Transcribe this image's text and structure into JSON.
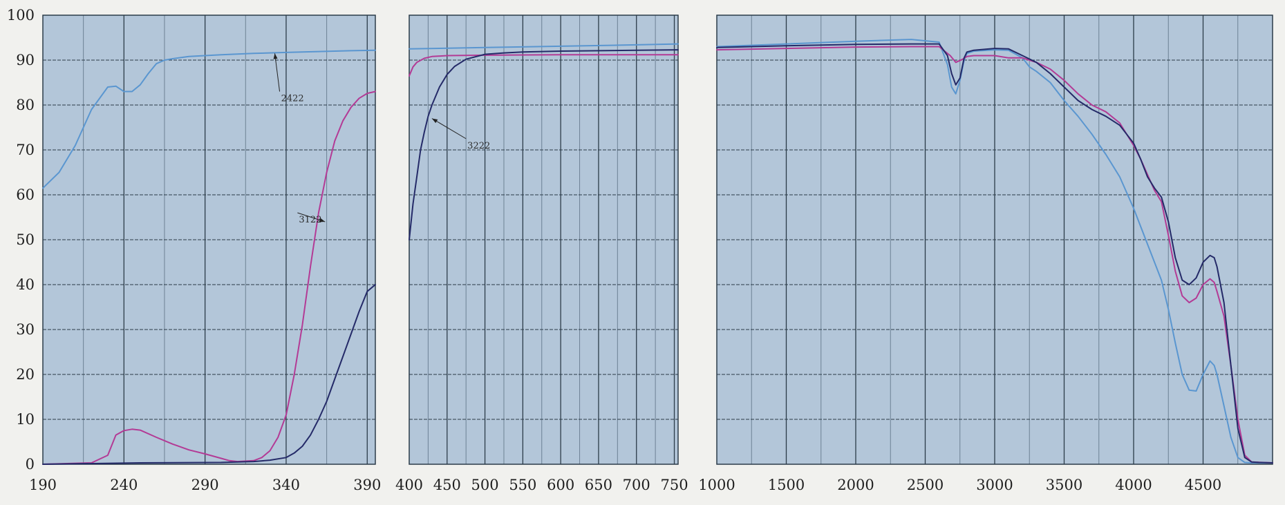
{
  "chart_data": {
    "type": "line",
    "y_ticks": [
      0,
      10,
      20,
      30,
      40,
      50,
      60,
      70,
      80,
      90,
      100
    ],
    "ylim": [
      0,
      100
    ],
    "grid": true,
    "colors": {
      "background": "#b3c6d9",
      "grid_major": "#2b3b48",
      "grid_minor": "#6d8194",
      "light_blue": "#5a96d0",
      "magenta": "#b33a95",
      "navy": "#242a68"
    },
    "panels": [
      {
        "xlim": [
          190,
          395
        ],
        "x_ticks": [
          190,
          240,
          290,
          340,
          390
        ],
        "series": [
          {
            "color": "light_blue",
            "x": [
              190,
              200,
              210,
              220,
              230,
              235,
              240,
              245,
              250,
              255,
              260,
              265,
              270,
              280,
              300,
              320,
              340,
              360,
              380,
              395
            ],
            "y": [
              61.5,
              65,
              71,
              79,
              84,
              84.2,
              83,
              83,
              84.5,
              87,
              89.2,
              90,
              90.3,
              90.8,
              91.2,
              91.5,
              91.7,
              91.9,
              92.1,
              92.2
            ]
          },
          {
            "color": "magenta",
            "x": [
              190,
              220,
              230,
              235,
              240,
              245,
              250,
              260,
              270,
              280,
              290,
              300,
              305,
              310,
              320,
              325,
              330,
              335,
              340,
              345,
              350,
              355,
              360,
              365,
              370,
              375,
              380,
              385,
              390,
              395
            ],
            "y": [
              0,
              0.3,
              2,
              6.5,
              7.5,
              7.8,
              7.6,
              6,
              4.5,
              3.2,
              2.3,
              1.3,
              0.8,
              0.6,
              0.8,
              1.5,
              3,
              6,
              11,
              20,
              31,
              44,
              56,
              65,
              72,
              76.5,
              79.5,
              81.5,
              82.6,
              83
            ]
          },
          {
            "color": "navy",
            "x": [
              190,
              250,
              300,
              320,
              330,
              340,
              345,
              350,
              355,
              360,
              365,
              370,
              375,
              380,
              385,
              390,
              395
            ],
            "y": [
              0,
              0.3,
              0.4,
              0.6,
              0.9,
              1.5,
              2.5,
              4,
              6.5,
              10,
              14,
              19,
              24,
              29,
              34,
              38.5,
              40
            ]
          }
        ],
        "annotations": [
          {
            "text": "2422",
            "target": [
              333,
              91.5
            ],
            "label_at": [
              336,
              83
            ]
          },
          {
            "text": "3122",
            "target": [
              364,
              54
            ],
            "label_at": [
              347,
              56
            ]
          }
        ]
      },
      {
        "xlim": [
          400,
          755
        ],
        "x_ticks": [
          400,
          450,
          500,
          550,
          600,
          650,
          700,
          750
        ],
        "series": [
          {
            "color": "light_blue",
            "x": [
              400,
              500,
              600,
              700,
              755
            ],
            "y": [
              92.5,
              92.8,
              93.1,
              93.4,
              93.6
            ]
          },
          {
            "color": "magenta",
            "x": [
              400,
              405,
              410,
              420,
              430,
              450,
              500,
              600,
              700,
              755
            ],
            "y": [
              86.5,
              88.5,
              89.5,
              90.4,
              90.8,
              91,
              91.1,
              91.2,
              91.2,
              91.2
            ]
          },
          {
            "color": "navy",
            "x": [
              400,
              405,
              410,
              415,
              420,
              425,
              430,
              440,
              450,
              460,
              475,
              500,
              525,
              550,
              600,
              700,
              755
            ],
            "y": [
              50,
              58,
              64,
              70,
              74,
              77.5,
              80,
              84,
              86.8,
              88.6,
              90.2,
              91.3,
              91.6,
              91.8,
              92,
              92.2,
              92.3
            ]
          }
        ],
        "annotations": [
          {
            "text": "3222",
            "target": [
              430,
              77
            ],
            "label_at": [
              475,
              72.5
            ]
          }
        ]
      },
      {
        "xlim": [
          1000,
          5000
        ],
        "x_ticks": [
          1000,
          1500,
          2000,
          2500,
          3000,
          3500,
          4000,
          4500
        ],
        "series": [
          {
            "color": "light_blue",
            "x": [
              1000,
              1500,
              2000,
              2400,
              2600,
              2660,
              2690,
              2720,
              2750,
              2780,
              2800,
              2850,
              3000,
              3100,
              3200,
              3250,
              3300,
              3400,
              3500,
              3600,
              3700,
              3800,
              3900,
              4000,
              4100,
              4200,
              4250,
              4300,
              4350,
              4400,
              4450,
              4500,
              4550,
              4580,
              4600,
              4650,
              4700,
              4750,
              4800,
              4850,
              4900,
              5000
            ],
            "y": [
              93,
              93.6,
              94.2,
              94.6,
              94,
              89,
              84,
              82.5,
              85.5,
              90,
              91.5,
              92,
              92.3,
              92.2,
              90.5,
              88.5,
              87.5,
              85,
              81,
              77.5,
              73.5,
              69,
              64,
              57,
              49,
              41,
              34.5,
              27,
              20,
              16.5,
              16.3,
              20,
              23,
              22,
              20,
              13,
              6,
              1.5,
              0.4,
              0.3,
              0.3,
              0.3
            ]
          },
          {
            "color": "magenta",
            "x": [
              1000,
              1500,
              2000,
              2400,
              2600,
              2680,
              2720,
              2770,
              2800,
              2850,
              3000,
              3100,
              3200,
              3300,
              3400,
              3500,
              3600,
              3700,
              3800,
              3900,
              4000,
              4050,
              4100,
              4150,
              4200,
              4250,
              4300,
              4350,
              4400,
              4450,
              4500,
              4550,
              4580,
              4600,
              4650,
              4700,
              4750,
              4800,
              4850,
              5000
            ],
            "y": [
              92.3,
              92.6,
              92.9,
              93,
              93,
              91,
              89.5,
              90.2,
              90.8,
              91,
              91,
              90.5,
              90.5,
              89.5,
              88,
              85.5,
              82.5,
              80,
              78.5,
              76,
              71,
              68,
              64.5,
              61,
              58.5,
              51,
              43,
              37.5,
              36,
              37,
              40,
              41.3,
              40.5,
              38.5,
              33,
              22,
              10,
              2,
              0.5,
              0.3
            ]
          },
          {
            "color": "navy",
            "x": [
              1000,
              1500,
              2000,
              2400,
              2600,
              2660,
              2690,
              2720,
              2750,
              2780,
              2800,
              2850,
              3000,
              3100,
              3200,
              3300,
              3400,
              3500,
              3600,
              3700,
              3800,
              3900,
              4000,
              4050,
              4100,
              4150,
              4200,
              4250,
              4300,
              4350,
              4400,
              4450,
              4500,
              4550,
              4580,
              4600,
              4650,
              4700,
              4750,
              4800,
              4850,
              4900,
              5000
            ],
            "y": [
              92.8,
              93.2,
              93.5,
              93.6,
              93.6,
              91,
              87,
              84.5,
              86,
              90.5,
              91.8,
              92.2,
              92.6,
              92.5,
              91,
              89.5,
              87,
              84,
              81,
              79,
              77.5,
              75.5,
              71.5,
              68,
              64,
              61.5,
              59.5,
              54,
              46,
              41,
              40,
              41.5,
              45,
              46.5,
              46,
              44,
              36,
              22,
              8,
              1.5,
              0.5,
              0.4,
              0.3
            ]
          }
        ],
        "annotations": []
      }
    ]
  }
}
